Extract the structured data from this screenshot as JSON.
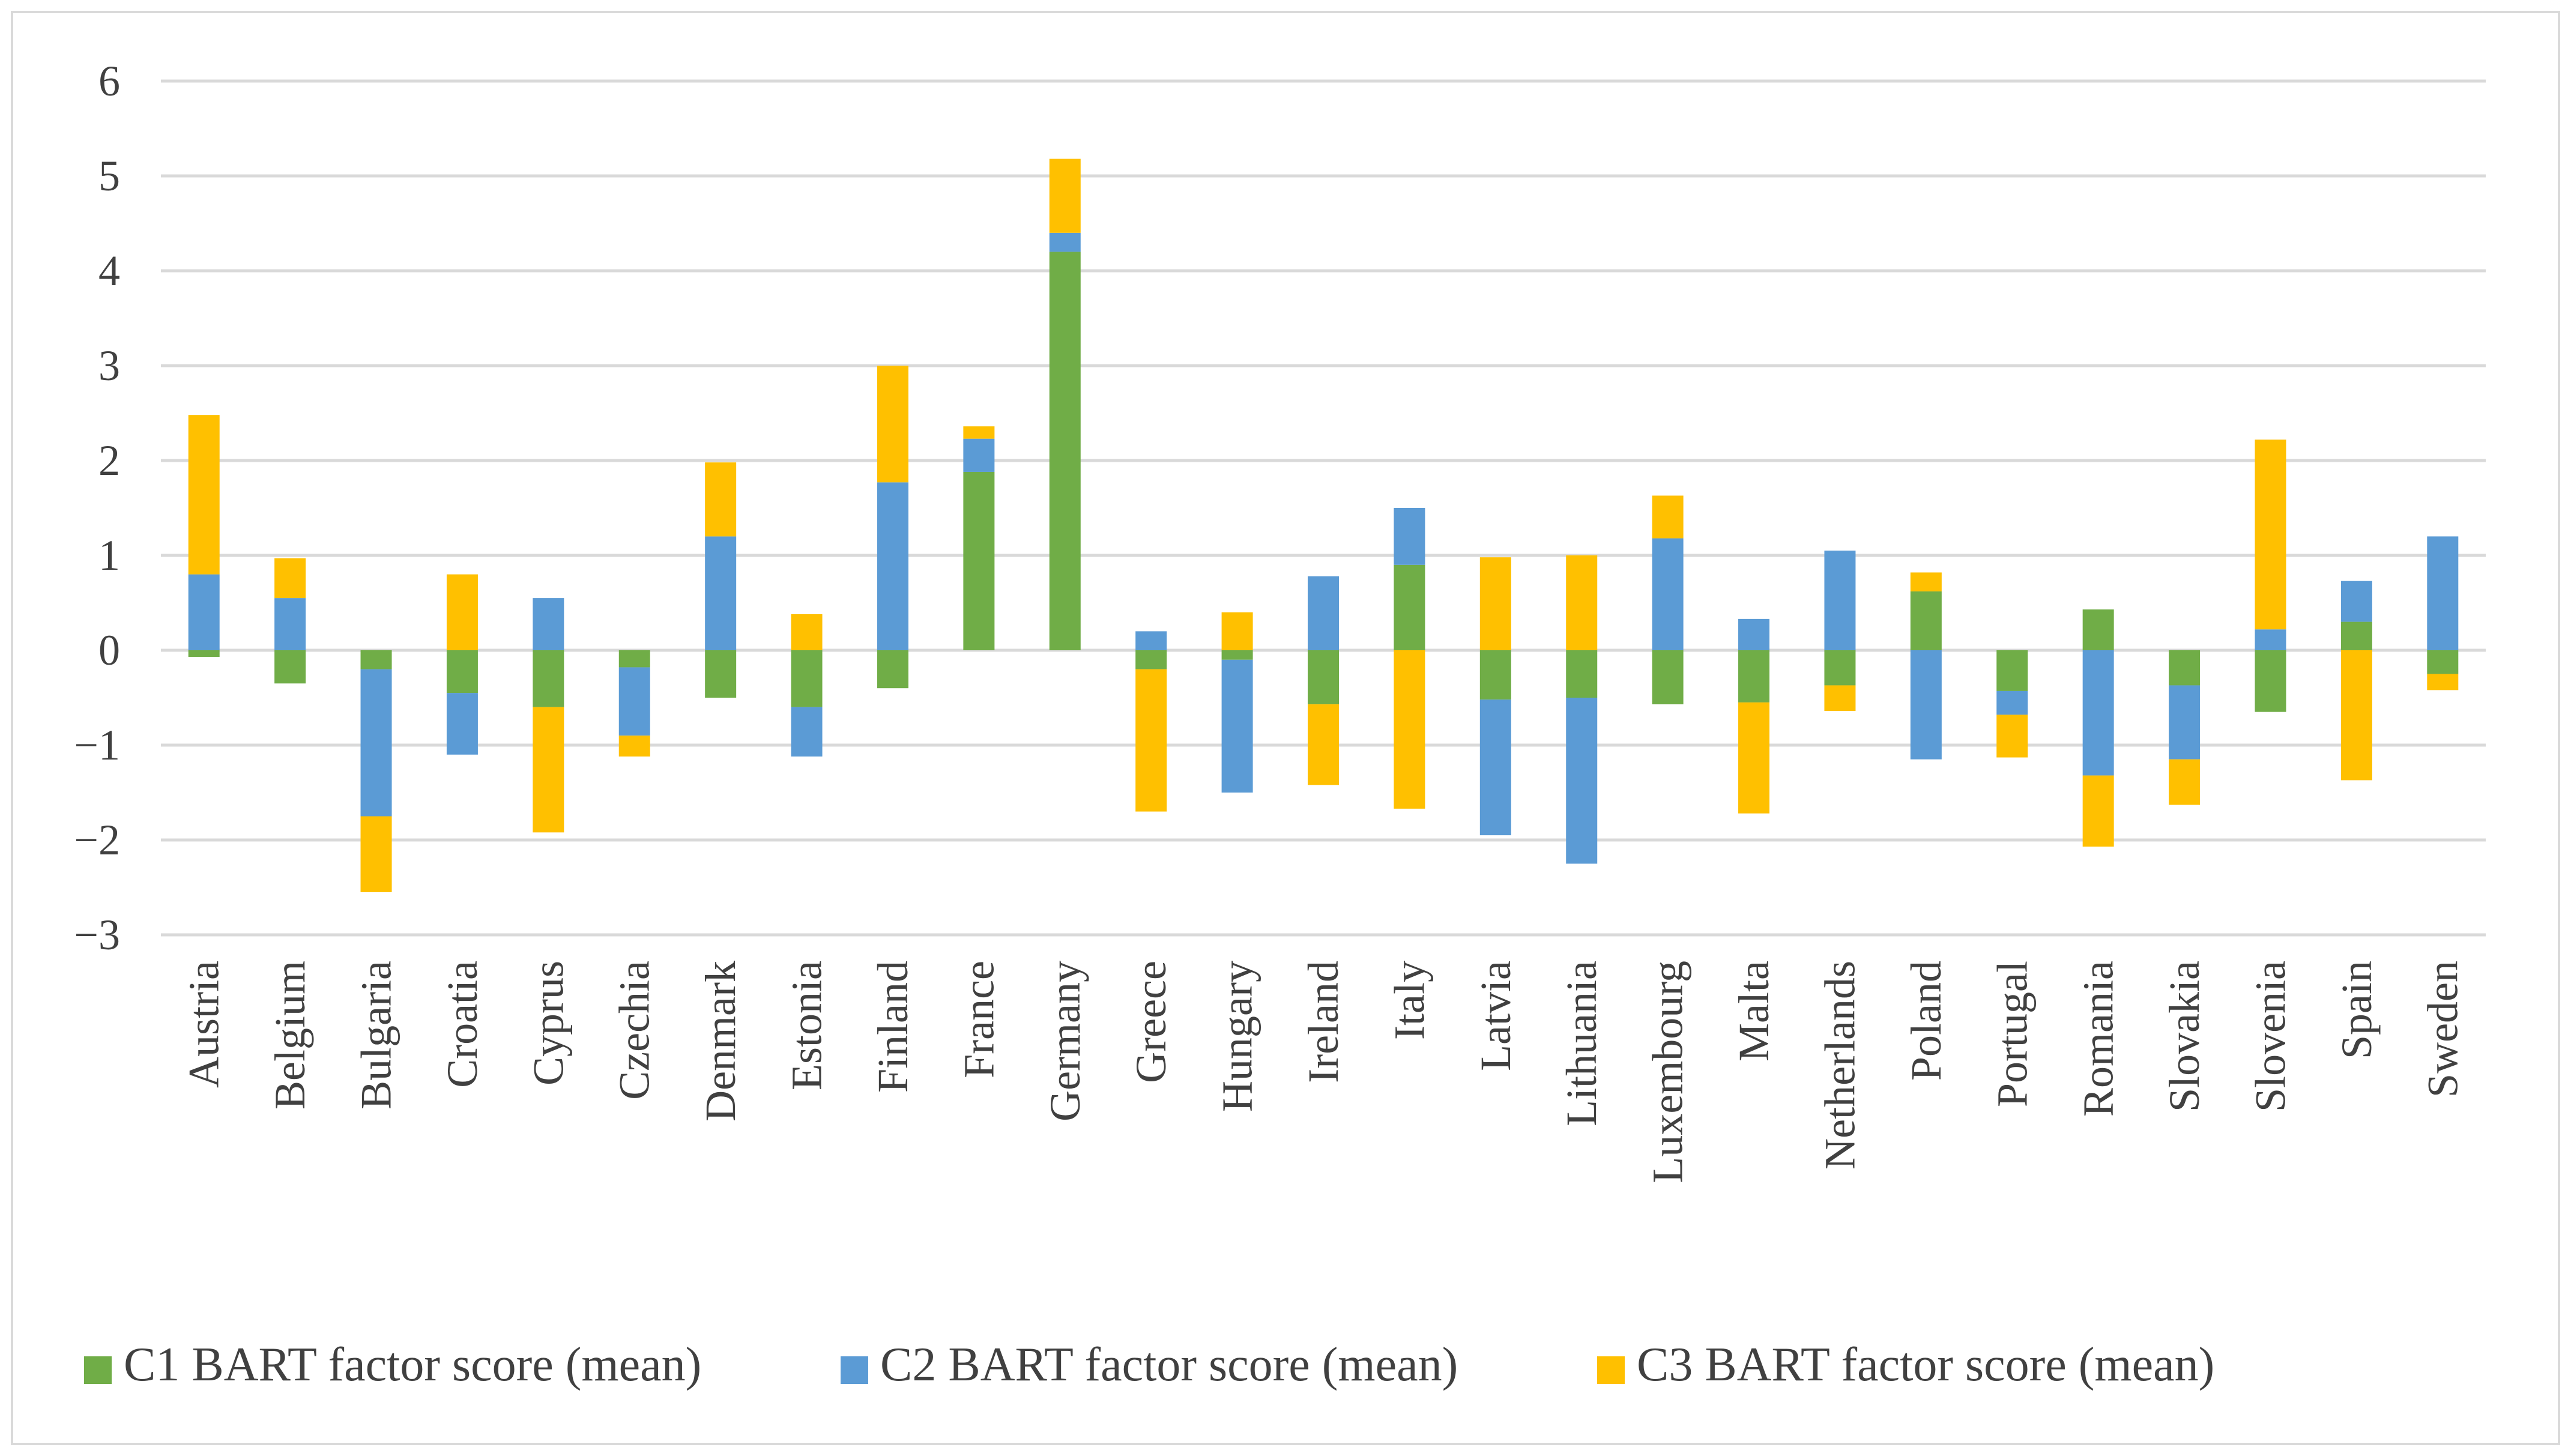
{
  "chart_data": {
    "type": "bar",
    "stacked": true,
    "title": "",
    "xlabel": "",
    "ylabel": "",
    "ylim": [
      -3,
      6
    ],
    "yticks": [
      -3,
      -2,
      -1,
      0,
      1,
      2,
      3,
      4,
      5,
      6
    ],
    "ytick_labels": [
      "−3",
      "−2",
      "−1",
      "0",
      "1",
      "2",
      "3",
      "4",
      "5",
      "6"
    ],
    "grid": true,
    "legend_position": "bottom",
    "categories": [
      "Austria",
      "Belgium",
      "Bulgaria",
      "Croatia",
      "Cyprus",
      "Czechia",
      "Denmark",
      "Estonia",
      "Finland",
      "France",
      "Germany",
      "Greece",
      "Hungary",
      "Ireland",
      "Italy",
      "Latvia",
      "Lithuania",
      "Luxembourg",
      "Malta",
      "Netherlands",
      "Poland",
      "Portugal",
      "Romania",
      "Slovakia",
      "Slovenia",
      "Spain",
      "Sweden"
    ],
    "series": [
      {
        "name": "C1 BART factor score (mean)",
        "color": "#70ad47",
        "values": [
          -0.07,
          -0.35,
          -0.2,
          -0.45,
          -0.6,
          -0.18,
          -0.5,
          -0.6,
          -0.4,
          1.88,
          4.2,
          -0.2,
          -0.1,
          -0.57,
          0.9,
          -0.52,
          -0.5,
          -0.57,
          -0.55,
          -0.37,
          0.62,
          -0.43,
          0.43,
          -0.37,
          -0.65,
          0.3,
          -0.25
        ]
      },
      {
        "name": "C2 BART factor score (mean)",
        "color": "#5b9bd5",
        "values": [
          0.8,
          0.55,
          -1.55,
          -0.65,
          0.55,
          -0.72,
          1.2,
          -0.52,
          1.77,
          0.35,
          0.2,
          0.2,
          -1.4,
          0.78,
          0.6,
          -1.43,
          -1.75,
          1.18,
          0.33,
          1.05,
          -1.15,
          -0.25,
          -1.32,
          -0.78,
          0.22,
          0.43,
          1.2
        ]
      },
      {
        "name": "C3 BART factor score (mean)",
        "color": "#ffc000",
        "values": [
          1.68,
          0.42,
          -0.8,
          0.8,
          -1.32,
          -0.22,
          0.78,
          0.38,
          1.23,
          0.13,
          0.78,
          -1.5,
          0.4,
          -0.85,
          -1.67,
          0.98,
          1.0,
          0.45,
          -1.17,
          -0.27,
          0.2,
          -0.45,
          -0.75,
          -0.48,
          2.0,
          -1.37,
          -0.17
        ]
      }
    ]
  }
}
